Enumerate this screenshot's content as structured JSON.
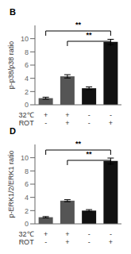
{
  "chart_data": [
    {
      "type": "bar",
      "title": "B",
      "ylabel": "p-p38/p38 ratio",
      "categories": [
        [
          "+",
          "-"
        ],
        [
          "+",
          "+"
        ],
        [
          "-",
          "-"
        ],
        [
          "-",
          "+"
        ]
      ],
      "category_row_names": [
        "32℃",
        "ROT"
      ],
      "values": [
        1.0,
        4.3,
        2.5,
        9.5
      ],
      "errors": [
        0.15,
        0.25,
        0.2,
        0.4
      ],
      "colors": [
        "#555555",
        "#555555",
        "#111111",
        "#111111"
      ],
      "ylim": [
        0,
        12
      ],
      "yticks": [
        0,
        2,
        4,
        6,
        8,
        10
      ],
      "brackets": [
        {
          "pair": [
            0,
            3
          ],
          "label": "**"
        },
        {
          "pair": [
            1,
            3
          ],
          "label": "**"
        }
      ]
    },
    {
      "type": "bar",
      "title": "D",
      "ylabel": "p-ERK1/2/ERK1 ratio",
      "categories": [
        [
          "+",
          "-"
        ],
        [
          "+",
          "+"
        ],
        [
          "-",
          "-"
        ],
        [
          "-",
          "+"
        ]
      ],
      "category_row_names": [
        "32℃",
        "ROT"
      ],
      "values": [
        1.0,
        3.5,
        2.0,
        9.5
      ],
      "errors": [
        0.1,
        0.15,
        0.15,
        0.45
      ],
      "colors": [
        "#555555",
        "#555555",
        "#111111",
        "#111111"
      ],
      "ylim": [
        0,
        12
      ],
      "yticks": [
        0,
        2,
        4,
        6,
        8,
        10
      ],
      "brackets": [
        {
          "pair": [
            0,
            3
          ],
          "label": "**"
        },
        {
          "pair": [
            1,
            3
          ],
          "label": "**"
        }
      ]
    }
  ]
}
